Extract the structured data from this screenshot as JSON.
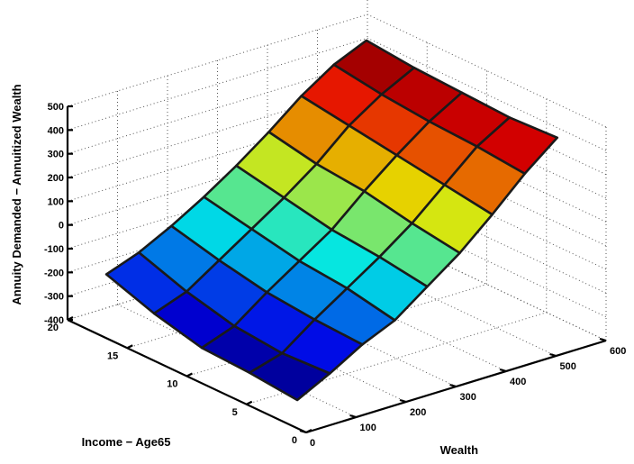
{
  "chart_data": {
    "type": "surface",
    "xlabel": "Wealth",
    "ylabel": "Income − Age65",
    "zlabel": "Annuity Demanded − Annuitized Wealth",
    "x_ticks": [
      "0",
      "100",
      "200",
      "300",
      "400",
      "500",
      "600"
    ],
    "y_ticks": [
      "0",
      "5",
      "10",
      "15",
      "20"
    ],
    "z_ticks": [
      "-400",
      "-300",
      "-200",
      "-100",
      "0",
      "100",
      "200",
      "300",
      "400",
      "500"
    ],
    "xlim": [
      0,
      600
    ],
    "ylim": [
      0,
      20
    ],
    "zlim": [
      -400,
      500
    ],
    "grid": true,
    "colormap": "jet",
    "wealth_grid": [
      30,
      95,
      160,
      225,
      290,
      355,
      420,
      485,
      550
    ],
    "income_grid": [
      2,
      6,
      10,
      14,
      18
    ],
    "surface_z": [
      [
        -330,
        -260,
        -180,
        -120,
        -20,
        80,
        200,
        330,
        440
      ],
      [
        -310,
        -270,
        -170,
        -80,
        10,
        110,
        230,
        350,
        430
      ],
      [
        -300,
        -250,
        -150,
        -60,
        30,
        150,
        260,
        360,
        440
      ],
      [
        -250,
        -200,
        -110,
        -20,
        70,
        170,
        290,
        380,
        450
      ],
      [
        -180,
        -130,
        -60,
        20,
        110,
        210,
        320,
        410,
        470
      ]
    ]
  }
}
